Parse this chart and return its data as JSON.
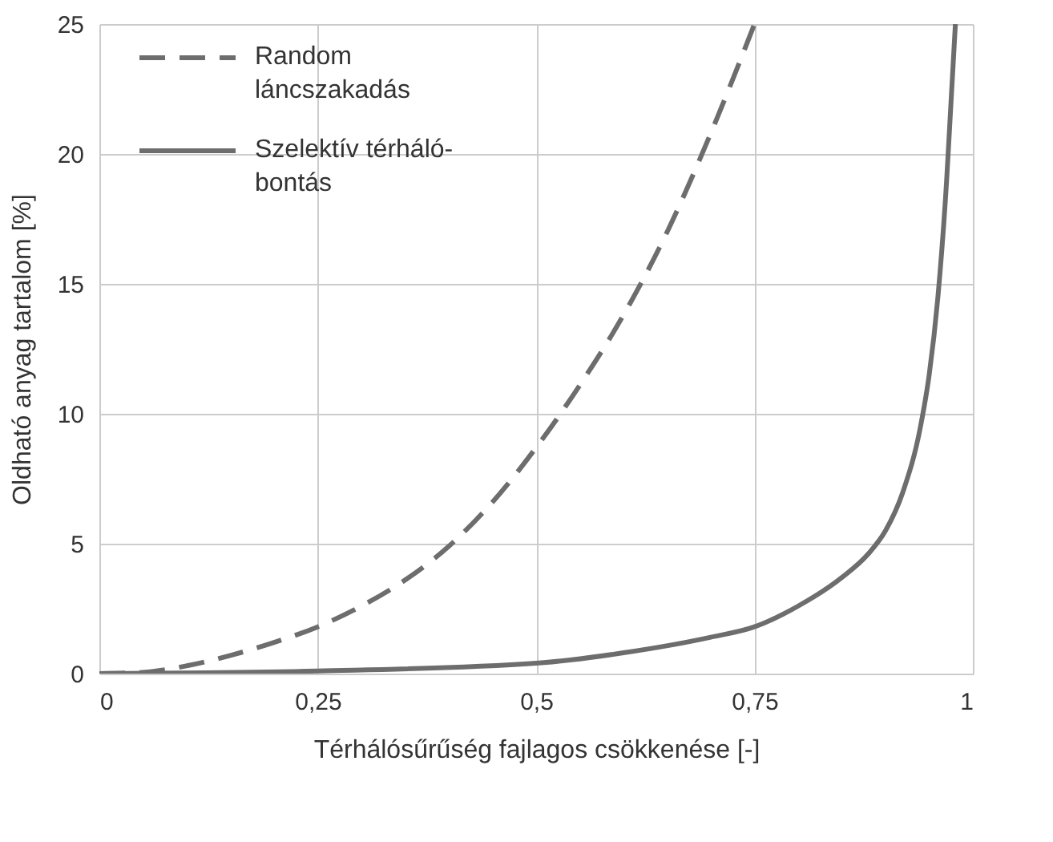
{
  "chart_data": {
    "type": "line",
    "xlabel": "Térhálósűrűség fajlagos csökkenése [-]",
    "ylabel": "Oldható anyag tartalom [%]",
    "xlim": [
      0,
      1
    ],
    "xticks": [
      0,
      {
        "value": 0.25,
        "label": "0,25"
      },
      {
        "value": 0.5,
        "label": "0,5"
      },
      {
        "value": 0.75,
        "label": "0,75"
      },
      1
    ],
    "ylim": [
      0,
      25
    ],
    "yticks": [
      0,
      5,
      10,
      15,
      20,
      25
    ],
    "grid": true,
    "legend": "top left",
    "series": [
      {
        "name": "Random\nláncszakadás",
        "color": "#6d6d6d",
        "line_style": "dashed",
        "x": [
          0,
          0.05,
          0.1,
          0.15,
          0.2,
          0.25,
          0.3,
          0.35,
          0.4,
          0.45,
          0.5,
          0.55,
          0.6,
          0.65,
          0.7,
          0.75
        ],
        "values": [
          0,
          0.05,
          0.3,
          0.7,
          1.2,
          1.8,
          2.6,
          3.6,
          4.9,
          6.6,
          8.7,
          11.1,
          13.8,
          17,
          20.8,
          25
        ]
      },
      {
        "name": "Szelektív térháló-\nbontás",
        "color": "#6d6d6d",
        "line_style": "solid",
        "x": [
          0,
          0.25,
          0.5,
          0.6,
          0.7,
          0.75,
          0.8,
          0.85,
          0.88,
          0.9,
          0.92,
          0.94,
          0.95,
          0.96,
          0.97,
          0.975,
          0.98
        ],
        "values": [
          0,
          0.1,
          0.4,
          0.8,
          1.4,
          1.8,
          2.6,
          3.7,
          4.6,
          5.5,
          7,
          9.5,
          11.5,
          14.5,
          19,
          22,
          25
        ]
      }
    ]
  }
}
